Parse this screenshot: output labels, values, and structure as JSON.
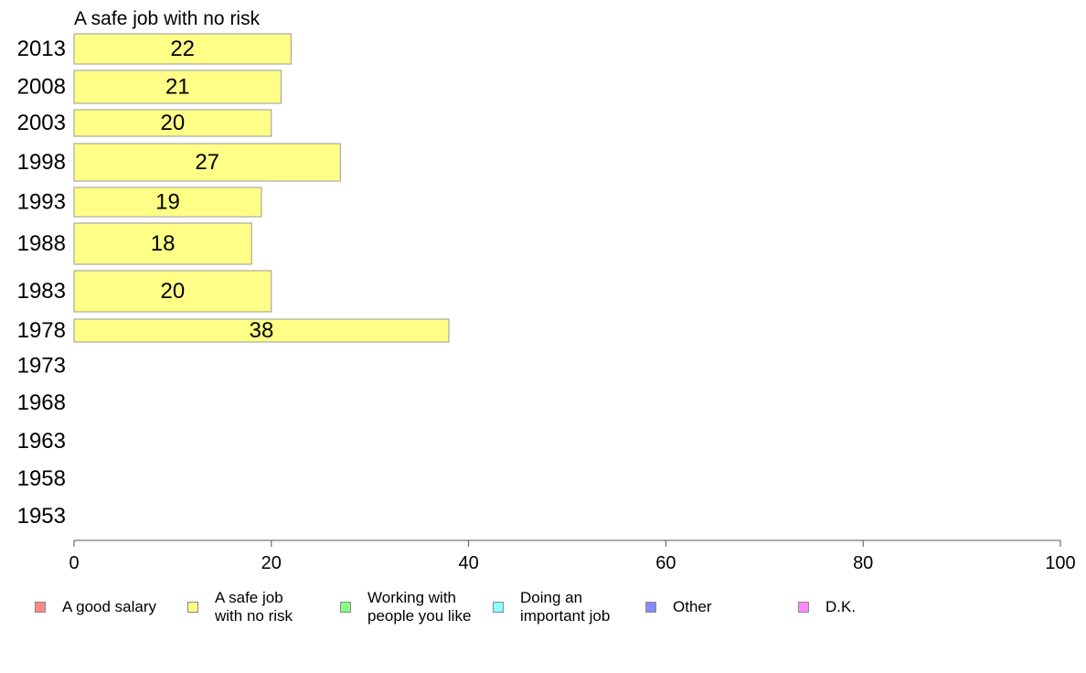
{
  "chart_data": {
    "type": "bar",
    "orientation": "horizontal",
    "title": "A safe job with no risk",
    "categories": [
      "2013",
      "2008",
      "2003",
      "1998",
      "1993",
      "1988",
      "1983",
      "1978",
      "1973",
      "1968",
      "1963",
      "1958",
      "1953"
    ],
    "values": [
      22,
      21,
      20,
      27,
      19,
      18,
      20,
      38,
      null,
      null,
      null,
      null,
      null
    ],
    "data_labels": [
      "22",
      "21",
      "20",
      "27",
      "19",
      "18",
      "20",
      "38",
      "",
      "",
      "",
      "",
      ""
    ],
    "xlim": [
      0,
      100
    ],
    "x_ticks": [
      "0",
      "20",
      "40",
      "60",
      "80",
      "100"
    ],
    "grid": false,
    "bar_color": "#ffff88",
    "legend": {
      "placement": "bottom",
      "items": [
        {
          "label": "A good salary",
          "color": "#ff8888"
        },
        {
          "label": "A safe job\nwith no risk",
          "color": "#ffff88"
        },
        {
          "label": "Working with\npeople you like",
          "color": "#88ff88"
        },
        {
          "label": "Doing an\nimportant job",
          "color": "#88ffff"
        },
        {
          "label": "Other",
          "color": "#8888ff"
        },
        {
          "label": "D.K.",
          "color": "#ff88ff"
        }
      ]
    }
  }
}
